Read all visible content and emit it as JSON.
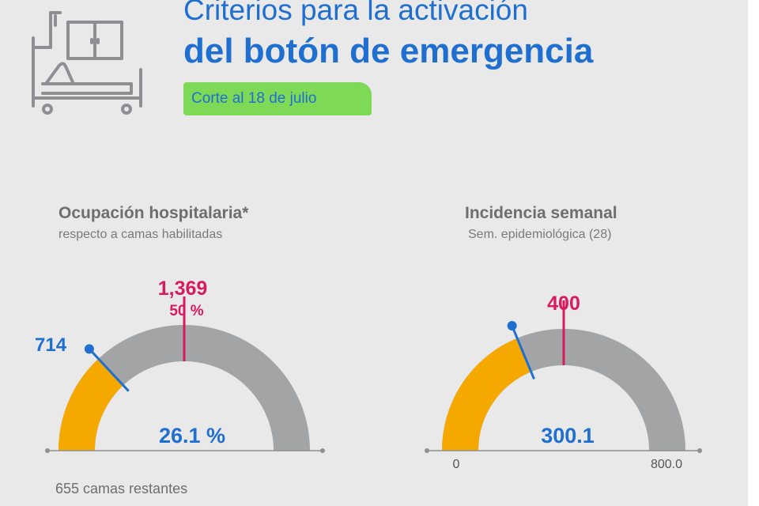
{
  "header": {
    "title_line1": "Criterios para la activación",
    "title_line2": "del botón de emergencia",
    "date_badge": "Corte al 18 de julio"
  },
  "remaining_beds": "655 camas restantes",
  "colors": {
    "blue": "#1f6fd0",
    "magenta": "#d81b60",
    "orange": "#f5a800",
    "gray_arc": "#a3a4a6",
    "green_badge": "#7ed957"
  },
  "icons": [
    "hospital-bed-icon"
  ],
  "chart_data": [
    {
      "type": "gauge",
      "title": "Ocupación hospitalaria*",
      "subtitle": "respecto a camas habilitadas",
      "value": 714,
      "value_label": "714",
      "value_fraction": 0.261,
      "center_label": "26.1 %",
      "threshold_label": "1,369",
      "threshold_pct_label": "50 %",
      "threshold_fraction": 0.5
    },
    {
      "type": "gauge",
      "title": "Incidencia semanal",
      "subtitle": "Sem. epidemiológica (28)",
      "value": 300.1,
      "center_label": "300.1",
      "threshold": 400,
      "threshold_label": "400",
      "min": 0,
      "max": 800,
      "min_label": "0",
      "max_label": "800.0"
    }
  ]
}
